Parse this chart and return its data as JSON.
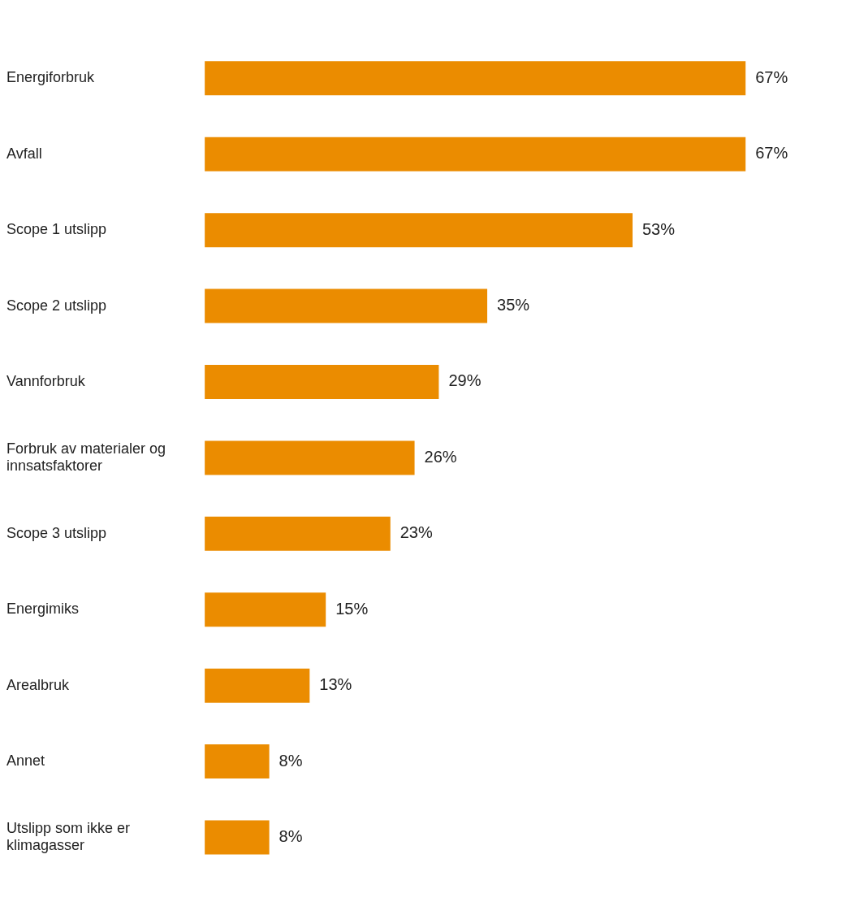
{
  "chart_data": {
    "type": "bar",
    "orientation": "horizontal",
    "categories": [
      "Energiforbruk",
      "Avfall",
      "Scope 1 utslipp",
      "Scope 2 utslipp",
      "Vannforbruk",
      "Forbruk av materialer og innsatsfaktorer",
      "Scope 3 utslipp",
      "Energimiks",
      "Arealbruk",
      "Annet",
      "Utslipp som ikke er klimagasser"
    ],
    "values": [
      67,
      67,
      53,
      35,
      29,
      26,
      23,
      15,
      13,
      8,
      8
    ],
    "value_labels": [
      "67%",
      "67%",
      "53%",
      "35%",
      "29%",
      "26%",
      "23%",
      "15%",
      "13%",
      "8%",
      "8%"
    ],
    "color": "#eb8c00",
    "tick_labels": "y"
  }
}
